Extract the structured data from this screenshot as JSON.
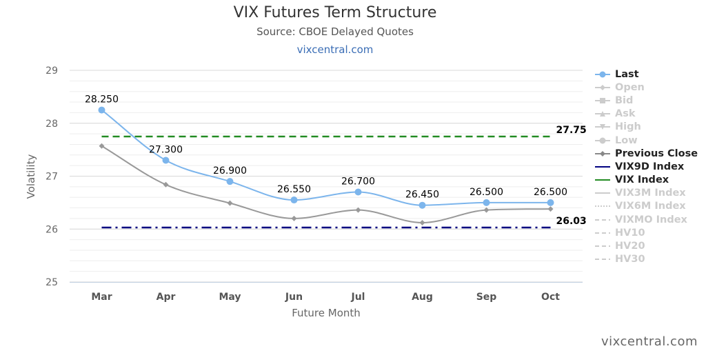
{
  "header": {
    "title": "VIX Futures Term Structure",
    "subtitle": "Source: CBOE Delayed Quotes",
    "link": "vixcentral.com"
  },
  "watermark": "vixcentral.com",
  "chart_data": {
    "type": "line",
    "categories": [
      "Mar",
      "Apr",
      "May",
      "Jun",
      "Jul",
      "Aug",
      "Sep",
      "Oct"
    ],
    "xlabel": "Future Month",
    "ylabel": "Volatility",
    "ylim": [
      25,
      29
    ],
    "yticks": [
      25,
      26,
      27,
      28,
      29
    ],
    "grid": true,
    "legend_position": "right",
    "series": [
      {
        "name": "Last",
        "values": [
          28.25,
          27.3,
          26.9,
          26.55,
          26.7,
          26.45,
          26.5,
          26.5
        ],
        "labels": [
          "28.250",
          "27.300",
          "26.900",
          "26.550",
          "26.700",
          "26.450",
          "26.500",
          "26.500"
        ],
        "color": "#7cb5ec",
        "marker": "circle"
      },
      {
        "name": "Previous Close",
        "values": [
          27.57,
          26.84,
          26.49,
          26.2,
          26.36,
          26.12,
          26.36,
          26.38
        ],
        "color": "#999999",
        "marker": "diamond"
      },
      {
        "name": "VIX9D Index",
        "value": 26.03,
        "label": "26.03",
        "color": "#000080",
        "dash": "dashdot"
      },
      {
        "name": "VIX Index",
        "value": 27.75,
        "label": "27.75",
        "color": "#228b22",
        "dash": "dash"
      }
    ],
    "legend": [
      {
        "name": "Last",
        "color": "#7cb5ec",
        "symbol": "circle-line",
        "active": true
      },
      {
        "name": "Open",
        "color": "#cccccc",
        "symbol": "diamond-line",
        "active": false
      },
      {
        "name": "Bid",
        "color": "#cccccc",
        "symbol": "square-line",
        "active": false
      },
      {
        "name": "Ask",
        "color": "#cccccc",
        "symbol": "triangle-line",
        "active": false
      },
      {
        "name": "High",
        "color": "#cccccc",
        "symbol": "triangle-down-line",
        "active": false
      },
      {
        "name": "Low",
        "color": "#cccccc",
        "symbol": "circle-line",
        "active": false
      },
      {
        "name": "Previous Close",
        "color": "#888888",
        "symbol": "diamond-line",
        "active": true
      },
      {
        "name": "VIX9D Index",
        "color": "#000080",
        "symbol": "line",
        "active": true
      },
      {
        "name": "VIX Index",
        "color": "#228b22",
        "symbol": "line",
        "active": true
      },
      {
        "name": "VIX3M Index",
        "color": "#cccccc",
        "symbol": "line",
        "active": false
      },
      {
        "name": "VIX6M Index",
        "color": "#cccccc",
        "symbol": "dot-line",
        "active": false
      },
      {
        "name": "VIXMO Index",
        "color": "#cccccc",
        "symbol": "dash-line",
        "active": false
      },
      {
        "name": "HV10",
        "color": "#cccccc",
        "symbol": "dash-line",
        "active": false
      },
      {
        "name": "HV20",
        "color": "#cccccc",
        "symbol": "dash-line",
        "active": false
      },
      {
        "name": "HV30",
        "color": "#cccccc",
        "symbol": "dash-line",
        "active": false
      }
    ]
  }
}
